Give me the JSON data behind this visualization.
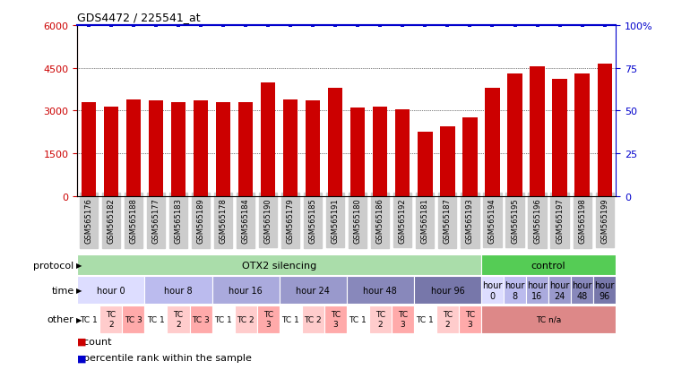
{
  "title": "GDS4472 / 225541_at",
  "samples": [
    "GSM565176",
    "GSM565182",
    "GSM565188",
    "GSM565177",
    "GSM565183",
    "GSM565189",
    "GSM565178",
    "GSM565184",
    "GSM565190",
    "GSM565179",
    "GSM565185",
    "GSM565191",
    "GSM565180",
    "GSM565186",
    "GSM565192",
    "GSM565181",
    "GSM565187",
    "GSM565193",
    "GSM565194",
    "GSM565195",
    "GSM565196",
    "GSM565197",
    "GSM565198",
    "GSM565199"
  ],
  "counts": [
    3300,
    3150,
    3400,
    3350,
    3300,
    3350,
    3300,
    3300,
    4000,
    3400,
    3350,
    3800,
    3100,
    3150,
    3050,
    2250,
    2450,
    2750,
    3800,
    4300,
    4550,
    4100,
    4300,
    4650
  ],
  "percentile": [
    100,
    100,
    100,
    100,
    100,
    100,
    100,
    100,
    100,
    100,
    100,
    100,
    100,
    100,
    100,
    100,
    100,
    100,
    100,
    100,
    100,
    100,
    100,
    100
  ],
  "bar_color": "#cc0000",
  "dot_color": "#0000cc",
  "ylim_left": [
    0,
    6000
  ],
  "ylim_right": [
    0,
    100
  ],
  "yticks_left": [
    0,
    1500,
    3000,
    4500,
    6000
  ],
  "yticks_right": [
    0,
    25,
    50,
    75,
    100
  ],
  "background_color": "#ffffff",
  "protocol_row": {
    "label": "protocol",
    "segments": [
      {
        "text": "OTX2 silencing",
        "start": 0,
        "end": 18,
        "color": "#aaddaa"
      },
      {
        "text": "control",
        "start": 18,
        "end": 24,
        "color": "#55cc55"
      }
    ]
  },
  "time_row": {
    "label": "time",
    "segments": [
      {
        "text": "hour 0",
        "start": 0,
        "end": 3,
        "color": "#ddddff"
      },
      {
        "text": "hour 8",
        "start": 3,
        "end": 6,
        "color": "#bbbbee"
      },
      {
        "text": "hour 16",
        "start": 6,
        "end": 9,
        "color": "#aaaadd"
      },
      {
        "text": "hour 24",
        "start": 9,
        "end": 12,
        "color": "#9999cc"
      },
      {
        "text": "hour 48",
        "start": 12,
        "end": 15,
        "color": "#8888bb"
      },
      {
        "text": "hour 96",
        "start": 15,
        "end": 18,
        "color": "#7777aa"
      },
      {
        "text": "hour\n0",
        "start": 18,
        "end": 19,
        "color": "#ddddff"
      },
      {
        "text": "hour\n8",
        "start": 19,
        "end": 20,
        "color": "#bbbbee"
      },
      {
        "text": "hour\n16",
        "start": 20,
        "end": 21,
        "color": "#aaaadd"
      },
      {
        "text": "hour\n24",
        "start": 21,
        "end": 22,
        "color": "#9999cc"
      },
      {
        "text": "hour\n48",
        "start": 22,
        "end": 23,
        "color": "#8888bb"
      },
      {
        "text": "hour\n96",
        "start": 23,
        "end": 24,
        "color": "#7777aa"
      }
    ]
  },
  "other_row": {
    "label": "other",
    "segments": [
      {
        "text": "TC 1",
        "start": 0,
        "end": 1,
        "color": "#ffffff"
      },
      {
        "text": "TC\n2",
        "start": 1,
        "end": 2,
        "color": "#ffcccc"
      },
      {
        "text": "TC 3",
        "start": 2,
        "end": 3,
        "color": "#ffaaaa"
      },
      {
        "text": "TC 1",
        "start": 3,
        "end": 4,
        "color": "#ffffff"
      },
      {
        "text": "TC\n2",
        "start": 4,
        "end": 5,
        "color": "#ffcccc"
      },
      {
        "text": "TC 3",
        "start": 5,
        "end": 6,
        "color": "#ffaaaa"
      },
      {
        "text": "TC 1",
        "start": 6,
        "end": 7,
        "color": "#ffffff"
      },
      {
        "text": "TC 2",
        "start": 7,
        "end": 8,
        "color": "#ffcccc"
      },
      {
        "text": "TC\n3",
        "start": 8,
        "end": 9,
        "color": "#ffaaaa"
      },
      {
        "text": "TC 1",
        "start": 9,
        "end": 10,
        "color": "#ffffff"
      },
      {
        "text": "TC 2",
        "start": 10,
        "end": 11,
        "color": "#ffcccc"
      },
      {
        "text": "TC\n3",
        "start": 11,
        "end": 12,
        "color": "#ffaaaa"
      },
      {
        "text": "TC 1",
        "start": 12,
        "end": 13,
        "color": "#ffffff"
      },
      {
        "text": "TC\n2",
        "start": 13,
        "end": 14,
        "color": "#ffcccc"
      },
      {
        "text": "TC\n3",
        "start": 14,
        "end": 15,
        "color": "#ffaaaa"
      },
      {
        "text": "TC 1",
        "start": 15,
        "end": 16,
        "color": "#ffffff"
      },
      {
        "text": "TC\n2",
        "start": 16,
        "end": 17,
        "color": "#ffcccc"
      },
      {
        "text": "TC\n3",
        "start": 17,
        "end": 18,
        "color": "#ffaaaa"
      },
      {
        "text": "TC n/a",
        "start": 18,
        "end": 24,
        "color": "#dd8888"
      }
    ]
  },
  "legend": [
    {
      "color": "#cc0000",
      "label": "count"
    },
    {
      "color": "#0000cc",
      "label": "percentile rank within the sample"
    }
  ]
}
